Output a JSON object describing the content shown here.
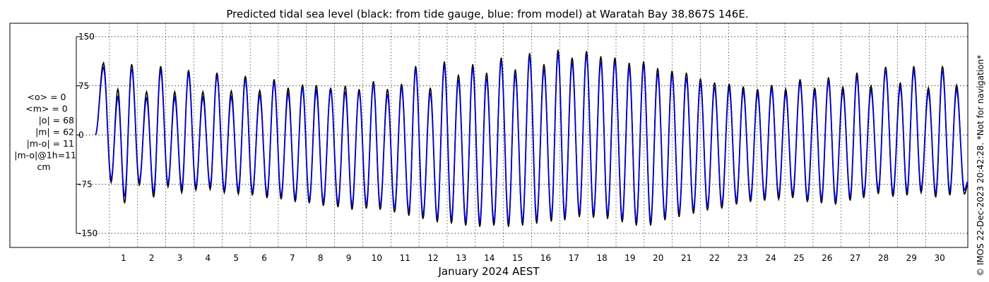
{
  "chart_data": {
    "type": "line",
    "title": "Predicted tidal sea level (black: from tide gauge, blue: from model) at Waratah Bay 38.867S 146E.",
    "xlabel": "January 2024 AEST",
    "ylabel": "",
    "x_unit": "day of January 2024",
    "xlim": [
      0,
      31
    ],
    "ylim": [
      -150,
      150
    ],
    "x_ticks": [
      "1",
      "2",
      "3",
      "4",
      "5",
      "6",
      "7",
      "8",
      "9",
      "10",
      "11",
      "12",
      "13",
      "14",
      "15",
      "16",
      "17",
      "18",
      "19",
      "20",
      "21",
      "22",
      "23",
      "24",
      "25",
      "26",
      "27",
      "28",
      "29",
      "30"
    ],
    "y_ticks": [
      "150",
      "75",
      "0",
      "-75",
      "-150"
    ],
    "y_tick_values": [
      150,
      75,
      0,
      -75,
      -150
    ],
    "grid": true,
    "stats_lines": [
      "<o> = 0",
      "<m> = 0",
      "|o| = 68",
      "|m| = 62",
      "|m-o| = 11",
      "|m-o|@1h=11",
      "cm"
    ],
    "side_note": "© IMOS 22-Dec-2023 20:42:28. *Not for navigation*",
    "series": [
      {
        "color": "#000000",
        "x": [
          0.29,
          0.56,
          0.8,
          1.04,
          1.29,
          1.56,
          1.82,
          2.07,
          2.32,
          2.58,
          2.82,
          3.07,
          3.31,
          3.57,
          3.82,
          4.08,
          4.32,
          4.58,
          4.83,
          5.08,
          5.33,
          5.58,
          5.84,
          6.1,
          6.35,
          6.6,
          6.85,
          7.1,
          7.36,
          7.6,
          7.85,
          8.1,
          8.36,
          8.62,
          8.88,
          9.12,
          9.37,
          9.63,
          9.88,
          10.12,
          10.38,
          10.63,
          10.88,
          11.14,
          11.38,
          11.64,
          11.9,
          12.15,
          12.4,
          12.65,
          12.9,
          13.16,
          13.41,
          13.66,
          13.9,
          14.16,
          14.42,
          14.68,
          14.92,
          15.18,
          15.43,
          15.68,
          15.94,
          16.2,
          16.44,
          16.68,
          16.94,
          17.2,
          17.45,
          17.7,
          17.96,
          18.2,
          18.46,
          18.72,
          18.97,
          19.22,
          19.48,
          19.73,
          19.98,
          20.24,
          20.49,
          20.74,
          21.0,
          21.25,
          21.5,
          21.75,
          22.0,
          22.26,
          22.52,
          22.78,
          23.02,
          23.28,
          23.53,
          23.78,
          24.03,
          24.28,
          24.53,
          24.78,
          25.04,
          25.3,
          25.56,
          25.8,
          26.05,
          26.3,
          26.56,
          26.82,
          27.06,
          27.3,
          27.56,
          27.82,
          28.08,
          28.34,
          28.6,
          28.84,
          29.08,
          29.34,
          29.6,
          29.86,
          30.1,
          30.36,
          30.6,
          30.88
        ],
        "values": [
          110,
          -72,
          70,
          -104,
          108,
          -76,
          66,
          -95,
          105,
          -79,
          66,
          -88,
          99,
          -84,
          66,
          -83,
          95,
          -88,
          67,
          -90,
          90,
          -92,
          68,
          -96,
          85,
          -98,
          72,
          -102,
          77,
          -104,
          76,
          -108,
          72,
          -110,
          75,
          -114,
          70,
          -112,
          82,
          -114,
          70,
          -118,
          78,
          -123,
          105,
          -128,
          72,
          -133,
          112,
          -135,
          92,
          -138,
          108,
          -140,
          95,
          -138,
          118,
          -140,
          100,
          -138,
          125,
          -135,
          108,
          -132,
          130,
          -130,
          118,
          -125,
          128,
          -126,
          120,
          -128,
          118,
          -133,
          110,
          -138,
          112,
          -138,
          102,
          -130,
          98,
          -125,
          95,
          -120,
          86,
          -115,
          80,
          -112,
          78,
          -106,
          74,
          -102,
          70,
          -100,
          76,
          -98,
          70,
          -96,
          85,
          -102,
          72,
          -104,
          88,
          -106,
          73,
          -100,
          95,
          -96,
          75,
          -90,
          104,
          -94,
          80,
          -92,
          105,
          -88,
          72,
          -95,
          105,
          -92,
          76,
          -90
        ]
      },
      {
        "color": "#0000cc",
        "x": [
          0.29,
          0.56,
          0.8,
          1.04,
          1.29,
          1.56,
          1.82,
          2.07,
          2.32,
          2.58,
          2.82,
          3.07,
          3.31,
          3.57,
          3.82,
          4.08,
          4.32,
          4.58,
          4.83,
          5.08,
          5.33,
          5.58,
          5.84,
          6.1,
          6.35,
          6.6,
          6.85,
          7.1,
          7.36,
          7.6,
          7.85,
          8.1,
          8.36,
          8.62,
          8.88,
          9.12,
          9.37,
          9.63,
          9.88,
          10.12,
          10.38,
          10.63,
          10.88,
          11.14,
          11.38,
          11.64,
          11.9,
          12.15,
          12.4,
          12.65,
          12.9,
          13.16,
          13.41,
          13.66,
          13.9,
          14.16,
          14.42,
          14.68,
          14.92,
          15.18,
          15.43,
          15.68,
          15.94,
          16.2,
          16.44,
          16.68,
          16.94,
          17.2,
          17.45,
          17.7,
          17.96,
          18.2,
          18.46,
          18.72,
          18.97,
          19.22,
          19.48,
          19.73,
          19.98,
          20.24,
          20.49,
          20.74,
          21.0,
          21.25,
          21.5,
          21.75,
          22.0,
          22.26,
          22.52,
          22.78,
          23.02,
          23.28,
          23.53,
          23.78,
          24.03,
          24.28,
          24.53,
          24.78,
          25.04,
          25.3,
          25.56,
          25.8,
          26.05,
          26.3,
          26.56,
          26.82,
          27.06,
          27.3,
          27.56,
          27.82,
          28.08,
          28.34,
          28.6,
          28.84,
          29.08,
          29.34,
          29.6,
          29.86,
          30.1,
          30.36,
          30.6,
          30.88
        ],
        "values": [
          103,
          -67,
          58,
          -94,
          101,
          -71,
          56,
          -87,
          98,
          -74,
          57,
          -81,
          94,
          -79,
          57,
          -77,
          90,
          -83,
          58,
          -84,
          85,
          -87,
          60,
          -90,
          80,
          -93,
          63,
          -96,
          72,
          -99,
          67,
          -102,
          68,
          -104,
          66,
          -108,
          66,
          -106,
          77,
          -108,
          62,
          -112,
          72,
          -117,
          100,
          -122,
          64,
          -127,
          106,
          -129,
          84,
          -132,
          102,
          -134,
          87,
          -132,
          112,
          -134,
          92,
          -132,
          119,
          -129,
          100,
          -126,
          124,
          -124,
          110,
          -119,
          122,
          -120,
          112,
          -122,
          112,
          -127,
          102,
          -132,
          106,
          -132,
          94,
          -124,
          92,
          -119,
          87,
          -114,
          79,
          -109,
          73,
          -106,
          71,
          -100,
          67,
          -96,
          63,
          -94,
          70,
          -92,
          63,
          -90,
          79,
          -96,
          65,
          -98,
          82,
          -100,
          66,
          -94,
          89,
          -90,
          68,
          -84,
          98,
          -88,
          73,
          -86,
          99,
          -82,
          65,
          -89,
          98,
          -86,
          69,
          -84
        ]
      }
    ]
  }
}
